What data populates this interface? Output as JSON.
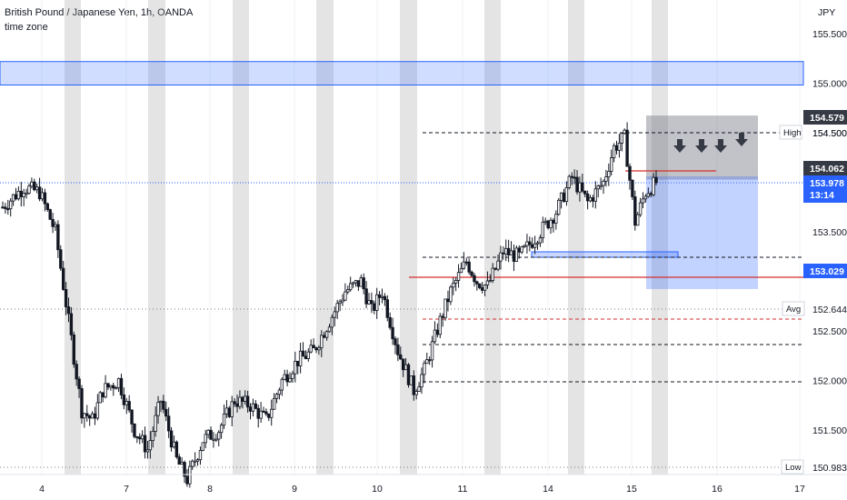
{
  "header": {
    "symbol": "British Pound / Japanese Yen, 1h, OANDA",
    "subtitle": "time zone"
  },
  "axis": {
    "currency": "JPY",
    "price_ticks": [
      "155.500",
      "155.000",
      "154.500",
      "153.500",
      "152.500",
      "152.000",
      "151.500"
    ],
    "date_ticks": [
      "4",
      "7",
      "8",
      "9",
      "10",
      "11",
      "14",
      "15",
      "16",
      "17"
    ]
  },
  "price_labels": {
    "high_label": "High",
    "high_value": "154.579",
    "high_level": "154.500",
    "last_value": "154.062",
    "current_value": "153.978",
    "countdown": "13:14",
    "red_level": "153.029",
    "avg_label": "Avg",
    "avg_value": "152.644",
    "low_label": "Low",
    "low_value": "150.983"
  },
  "colors": {
    "up": "#131722",
    "down": "#131722",
    "blue_zone": "#2962ff",
    "red_line": "#d32f2f",
    "session_shade": "#9e9e9e",
    "dark_tag": "#363a45",
    "blue_tag": "#2962ff"
  },
  "chart_data": {
    "type": "candlestick",
    "title": "British Pound / Japanese Yen, 1h, OANDA",
    "y_unit": "JPY",
    "ylim": [
      150.8,
      155.9
    ],
    "x_ticks": [
      "4",
      "7",
      "8",
      "9",
      "10",
      "11",
      "14",
      "15",
      "16",
      "17"
    ],
    "y_ticks": [
      155.5,
      155.0,
      154.5,
      153.5,
      152.5,
      152.0,
      151.5
    ],
    "anchor_prices": [
      [
        0,
        153.75
      ],
      [
        8,
        153.95
      ],
      [
        14,
        153.9
      ],
      [
        20,
        153.5
      ],
      [
        25,
        152.6
      ],
      [
        30,
        151.7
      ],
      [
        34,
        151.6
      ],
      [
        38,
        151.9
      ],
      [
        44,
        152.0
      ],
      [
        50,
        151.5
      ],
      [
        55,
        151.3
      ],
      [
        60,
        151.8
      ],
      [
        66,
        151.2
      ],
      [
        70,
        151.0
      ],
      [
        76,
        151.4
      ],
      [
        82,
        151.5
      ],
      [
        88,
        151.8
      ],
      [
        94,
        151.75
      ],
      [
        100,
        151.6
      ],
      [
        106,
        152.0
      ],
      [
        112,
        152.2
      ],
      [
        118,
        152.3
      ],
      [
        124,
        152.6
      ],
      [
        130,
        152.9
      ],
      [
        136,
        153.0
      ],
      [
        140,
        152.7
      ],
      [
        144,
        152.9
      ],
      [
        150,
        152.3
      ],
      [
        156,
        151.9
      ],
      [
        160,
        152.1
      ],
      [
        166,
        152.6
      ],
      [
        170,
        152.9
      ],
      [
        176,
        153.2
      ],
      [
        180,
        153.0
      ],
      [
        184,
        152.95
      ],
      [
        190,
        153.3
      ],
      [
        196,
        153.25
      ],
      [
        204,
        153.5
      ],
      [
        210,
        153.7
      ],
      [
        216,
        154.05
      ],
      [
        222,
        153.8
      ],
      [
        228,
        154.0
      ],
      [
        232,
        154.35
      ],
      [
        236,
        154.45
      ],
      [
        240,
        153.6
      ],
      [
        244,
        153.9
      ],
      [
        248,
        154.0
      ]
    ],
    "zones": [
      {
        "kind": "resistance",
        "from": 155.0,
        "to": 155.2
      },
      {
        "kind": "short_position_stop",
        "from": 154.1,
        "to": 154.6
      },
      {
        "kind": "short_position_target",
        "from": 152.95,
        "to": 154.06
      }
    ],
    "levels": [
      {
        "name": "High",
        "value": 154.579
      },
      {
        "name": "Avg",
        "value": 152.644
      },
      {
        "name": "Low",
        "value": 150.983
      },
      {
        "name": "red_line",
        "value": 153.029
      }
    ]
  }
}
